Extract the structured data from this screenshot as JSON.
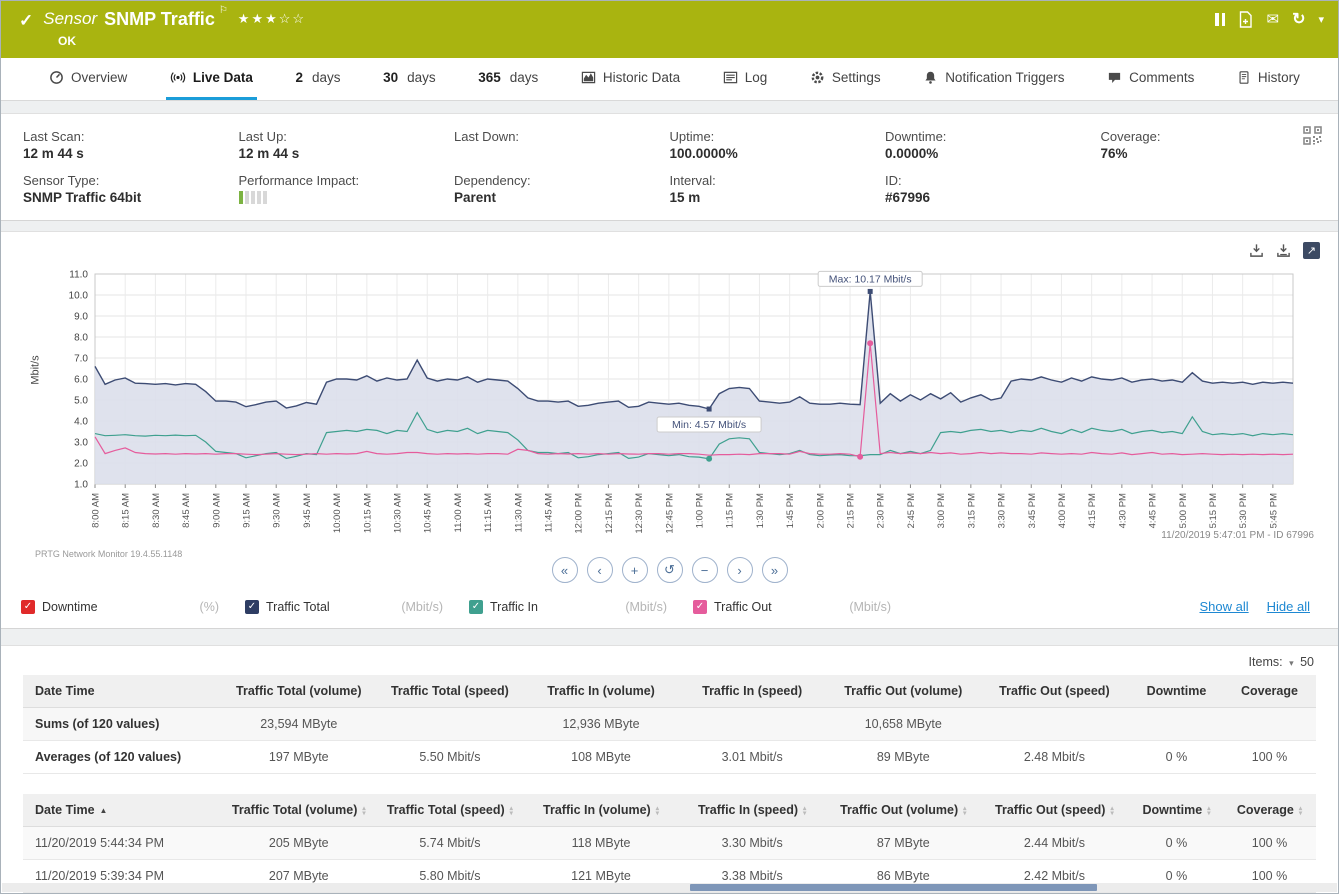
{
  "header": {
    "kind": "Sensor",
    "title": "SNMP Traffic",
    "status": "OK",
    "rating": {
      "filled": 3,
      "total": 5
    },
    "actions": [
      "pause",
      "report",
      "email",
      "refresh",
      "more"
    ]
  },
  "tabs": [
    {
      "icon": "gauge-icon",
      "label": "Overview"
    },
    {
      "icon": "live-icon",
      "label": "Live Data",
      "active": true
    },
    {
      "num": "2",
      "label": "days"
    },
    {
      "num": "30",
      "label": "days"
    },
    {
      "num": "365",
      "label": "days"
    },
    {
      "icon": "historic-icon",
      "label": "Historic Data"
    },
    {
      "icon": "log-icon",
      "label": "Log"
    },
    {
      "icon": "settings-icon",
      "label": "Settings"
    },
    {
      "icon": "bell-icon",
      "label": "Notification Triggers"
    },
    {
      "icon": "comments-icon",
      "label": "Comments"
    },
    {
      "icon": "history-icon",
      "label": "History"
    }
  ],
  "info": {
    "last_scan": {
      "label": "Last Scan:",
      "value": "12 m 44 s"
    },
    "last_up": {
      "label": "Last Up:",
      "value": "12 m 44 s"
    },
    "last_down": {
      "label": "Last Down:",
      "value": ""
    },
    "uptime": {
      "label": "Uptime:",
      "value": "100.0000%"
    },
    "downtime": {
      "label": "Downtime:",
      "value": "0.0000%"
    },
    "coverage": {
      "label": "Coverage:",
      "value": "76%"
    },
    "sensor_type": {
      "label": "Sensor Type:",
      "value": "SNMP Traffic 64bit"
    },
    "performance_impact": {
      "label": "Performance Impact:",
      "level": 1,
      "total": 5
    },
    "dependency": {
      "label": "Dependency:",
      "value": "Parent"
    },
    "interval": {
      "label": "Interval:",
      "value": "15 m"
    },
    "id": {
      "label": "ID:",
      "value": "#67996"
    }
  },
  "chart_data": {
    "type": "line",
    "ylabel": "Mbit/s",
    "ylim": [
      1,
      11
    ],
    "grid": true,
    "points_per_label": 3,
    "x_labels": [
      "8:00 AM",
      "8:15 AM",
      "8:30 AM",
      "8:45 AM",
      "9:00 AM",
      "9:15 AM",
      "9:30 AM",
      "9:45 AM",
      "10:00 AM",
      "10:15 AM",
      "10:30 AM",
      "10:45 AM",
      "11:00 AM",
      "11:15 AM",
      "11:30 AM",
      "11:45 AM",
      "12:00 PM",
      "12:15 PM",
      "12:30 PM",
      "12:45 PM",
      "1:00 PM",
      "1:15 PM",
      "1:30 PM",
      "1:45 PM",
      "2:00 PM",
      "2:15 PM",
      "2:30 PM",
      "2:45 PM",
      "3:00 PM",
      "3:15 PM",
      "3:30 PM",
      "3:45 PM",
      "4:00 PM",
      "4:15 PM",
      "4:30 PM",
      "4:45 PM",
      "5:00 PM",
      "5:15 PM",
      "5:30 PM",
      "5:45 PM"
    ],
    "series": [
      {
        "name": "Traffic Total",
        "unit": "Mbit/s",
        "color": "#3d4c74",
        "fill": "#dcdfeb",
        "values": [
          6.6,
          5.75,
          5.95,
          6.05,
          5.8,
          5.78,
          5.75,
          5.78,
          5.72,
          5.78,
          5.75,
          5.4,
          4.95,
          4.95,
          4.9,
          4.68,
          4.78,
          4.9,
          4.95,
          4.62,
          4.72,
          4.88,
          4.8,
          5.85,
          6.0,
          6.0,
          5.95,
          6.15,
          5.9,
          6.05,
          5.95,
          6.0,
          6.9,
          6.05,
          5.9,
          6.0,
          5.95,
          6.1,
          5.85,
          6.0,
          5.95,
          5.9,
          5.55,
          5.1,
          4.95,
          4.95,
          4.9,
          4.95,
          4.7,
          4.75,
          4.85,
          4.9,
          4.95,
          4.65,
          4.7,
          4.9,
          4.85,
          4.8,
          4.85,
          4.75,
          4.7,
          4.57,
          5.3,
          5.55,
          5.6,
          5.55,
          4.95,
          4.9,
          4.85,
          4.9,
          5.15,
          4.85,
          4.8,
          4.8,
          4.85,
          4.8,
          4.78,
          10.17,
          4.85,
          5.3,
          4.95,
          5.25,
          5.0,
          5.3,
          5.05,
          5.35,
          4.9,
          5.1,
          5.25,
          5.0,
          5.1,
          5.9,
          6.0,
          5.95,
          6.1,
          5.95,
          5.85,
          6.05,
          5.9,
          6.1,
          6.0,
          5.95,
          6.05,
          5.85,
          5.95,
          6.0,
          5.9,
          5.95,
          5.85,
          6.3,
          5.9,
          5.8,
          5.85,
          5.8,
          5.85,
          5.75,
          5.85,
          5.8,
          5.85,
          5.8
        ]
      },
      {
        "name": "Traffic In",
        "unit": "Mbit/s",
        "color": "#3fa08f",
        "values": [
          3.4,
          3.3,
          3.32,
          3.35,
          3.3,
          3.28,
          3.32,
          3.3,
          3.33,
          3.3,
          3.32,
          3.0,
          2.55,
          2.5,
          2.45,
          2.25,
          2.35,
          2.45,
          2.5,
          2.22,
          2.32,
          2.45,
          2.4,
          3.45,
          3.5,
          3.55,
          3.5,
          3.6,
          3.55,
          3.4,
          3.55,
          3.5,
          4.4,
          3.6,
          3.45,
          3.55,
          3.5,
          3.65,
          3.4,
          3.55,
          3.5,
          3.45,
          3.1,
          2.6,
          2.5,
          2.5,
          2.45,
          2.5,
          2.25,
          2.3,
          2.4,
          2.45,
          2.5,
          2.22,
          2.28,
          2.45,
          2.4,
          2.35,
          2.4,
          2.3,
          2.28,
          2.2,
          2.9,
          3.15,
          3.2,
          3.15,
          2.5,
          2.45,
          2.4,
          2.45,
          2.6,
          2.4,
          2.35,
          2.38,
          2.4,
          2.35,
          2.35,
          2.4,
          2.4,
          2.6,
          2.45,
          2.55,
          2.45,
          2.6,
          3.45,
          3.5,
          3.45,
          3.55,
          3.6,
          3.5,
          3.55,
          3.45,
          3.55,
          3.5,
          3.65,
          3.5,
          3.4,
          3.6,
          3.45,
          3.65,
          3.55,
          3.5,
          3.6,
          3.4,
          3.5,
          3.55,
          3.45,
          3.5,
          3.4,
          4.2,
          3.5,
          3.35,
          3.4,
          3.35,
          3.4,
          3.3,
          3.4,
          3.35,
          3.4,
          3.35
        ]
      },
      {
        "name": "Traffic Out",
        "unit": "Mbit/s",
        "color": "#e55c9c",
        "values": [
          3.25,
          2.45,
          2.6,
          2.72,
          2.5,
          2.45,
          2.43,
          2.45,
          2.42,
          2.45,
          2.43,
          2.45,
          2.42,
          2.45,
          2.45,
          2.42,
          2.4,
          2.42,
          2.45,
          2.42,
          2.4,
          2.42,
          2.45,
          2.42,
          2.45,
          2.43,
          2.45,
          2.55,
          2.45,
          2.42,
          2.45,
          2.5,
          2.5,
          2.45,
          2.42,
          2.45,
          2.43,
          2.45,
          2.42,
          2.45,
          2.45,
          2.42,
          2.65,
          2.6,
          2.45,
          2.42,
          2.45,
          2.43,
          2.45,
          2.42,
          2.45,
          2.42,
          2.45,
          2.43,
          2.42,
          2.45,
          2.45,
          2.42,
          2.45,
          2.45,
          2.42,
          2.37,
          2.4,
          2.4,
          2.42,
          2.4,
          2.45,
          2.45,
          2.45,
          2.42,
          2.55,
          2.45,
          2.42,
          2.42,
          2.45,
          2.42,
          2.3,
          7.7,
          2.45,
          2.5,
          2.45,
          2.48,
          2.45,
          2.5,
          2.45,
          2.48,
          2.42,
          2.45,
          2.5,
          2.45,
          2.48,
          2.45,
          2.45,
          2.42,
          2.48,
          2.45,
          2.42,
          2.45,
          2.42,
          2.5,
          2.45,
          2.42,
          2.48,
          2.4,
          2.45,
          2.5,
          2.42,
          2.45,
          2.4,
          2.42,
          2.45,
          2.42,
          2.4,
          2.42,
          2.4,
          2.42,
          2.4,
          2.42,
          2.4,
          2.42
        ]
      },
      {
        "name": "Downtime",
        "unit": "%",
        "color": "#e02a2a",
        "constant_value": 0
      }
    ],
    "annotations": [
      {
        "text": "Max: 10.17 Mbit/s",
        "series": 0,
        "index": 77,
        "value": 10.17,
        "placement": "above"
      },
      {
        "text": "Min: 4.57 Mbit/s",
        "series": 0,
        "index": 61,
        "value": 4.57,
        "placement": "below"
      }
    ],
    "markers": [
      {
        "series": 1,
        "index": 61
      },
      {
        "series": 2,
        "index": 76
      },
      {
        "series": 2,
        "index": 77
      }
    ],
    "footer_left": "PRTG Network Monitor 19.4.55.1148",
    "footer_right": "11/20/2019 5:47:01 PM - ID 67996"
  },
  "chart_controls": [
    "«",
    "‹",
    "+",
    "↺",
    "−",
    "›",
    "»"
  ],
  "legend": {
    "items": [
      {
        "label": "Downtime",
        "unit": "(%)",
        "color": "#e02a2a",
        "checked": true
      },
      {
        "label": "Traffic Total",
        "unit": "(Mbit/s)",
        "color": "#2e3d63",
        "checked": true
      },
      {
        "label": "Traffic In",
        "unit": "(Mbit/s)",
        "color": "#3fa08f",
        "checked": true
      },
      {
        "label": "Traffic Out",
        "unit": "(Mbit/s)",
        "color": "#e55c9c",
        "checked": true
      }
    ],
    "show_all": "Show all",
    "hide_all": "Hide all"
  },
  "items_control": {
    "label": "Items:",
    "value": "50"
  },
  "summary_table": {
    "headers": [
      "Date Time",
      "Traffic Total (volume)",
      "Traffic Total (speed)",
      "Traffic In (volume)",
      "Traffic In (speed)",
      "Traffic Out (volume)",
      "Traffic Out (speed)",
      "Downtime",
      "Coverage"
    ],
    "rows": [
      [
        "Sums (of 120 values)",
        "23,594 MByte",
        "",
        "12,936 MByte",
        "",
        "10,658 MByte",
        "",
        "",
        ""
      ],
      [
        "Averages (of 120 values)",
        "197 MByte",
        "5.50 Mbit/s",
        "108 MByte",
        "3.01 Mbit/s",
        "89 MByte",
        "2.48 Mbit/s",
        "0 %",
        "100 %"
      ]
    ]
  },
  "detail_table": {
    "headers": [
      "Date Time",
      "Traffic Total (volume)",
      "Traffic Total (speed)",
      "Traffic In (volume)",
      "Traffic In (speed)",
      "Traffic Out (volume)",
      "Traffic Out (speed)",
      "Downtime",
      "Coverage"
    ],
    "sort": {
      "column": 0,
      "dir": "asc"
    },
    "rows": [
      [
        "11/20/2019 5:44:34 PM",
        "205 MByte",
        "5.74 Mbit/s",
        "118 MByte",
        "3.30 Mbit/s",
        "87 MByte",
        "2.44 Mbit/s",
        "0 %",
        "100 %"
      ],
      [
        "11/20/2019 5:39:34 PM",
        "207 MByte",
        "5.80 Mbit/s",
        "121 MByte",
        "3.38 Mbit/s",
        "86 MByte",
        "2.42 Mbit/s",
        "0 %",
        "100 %"
      ]
    ]
  },
  "colors": {
    "header_green": "#a9b410",
    "accent_blue": "#1b9dd9"
  }
}
